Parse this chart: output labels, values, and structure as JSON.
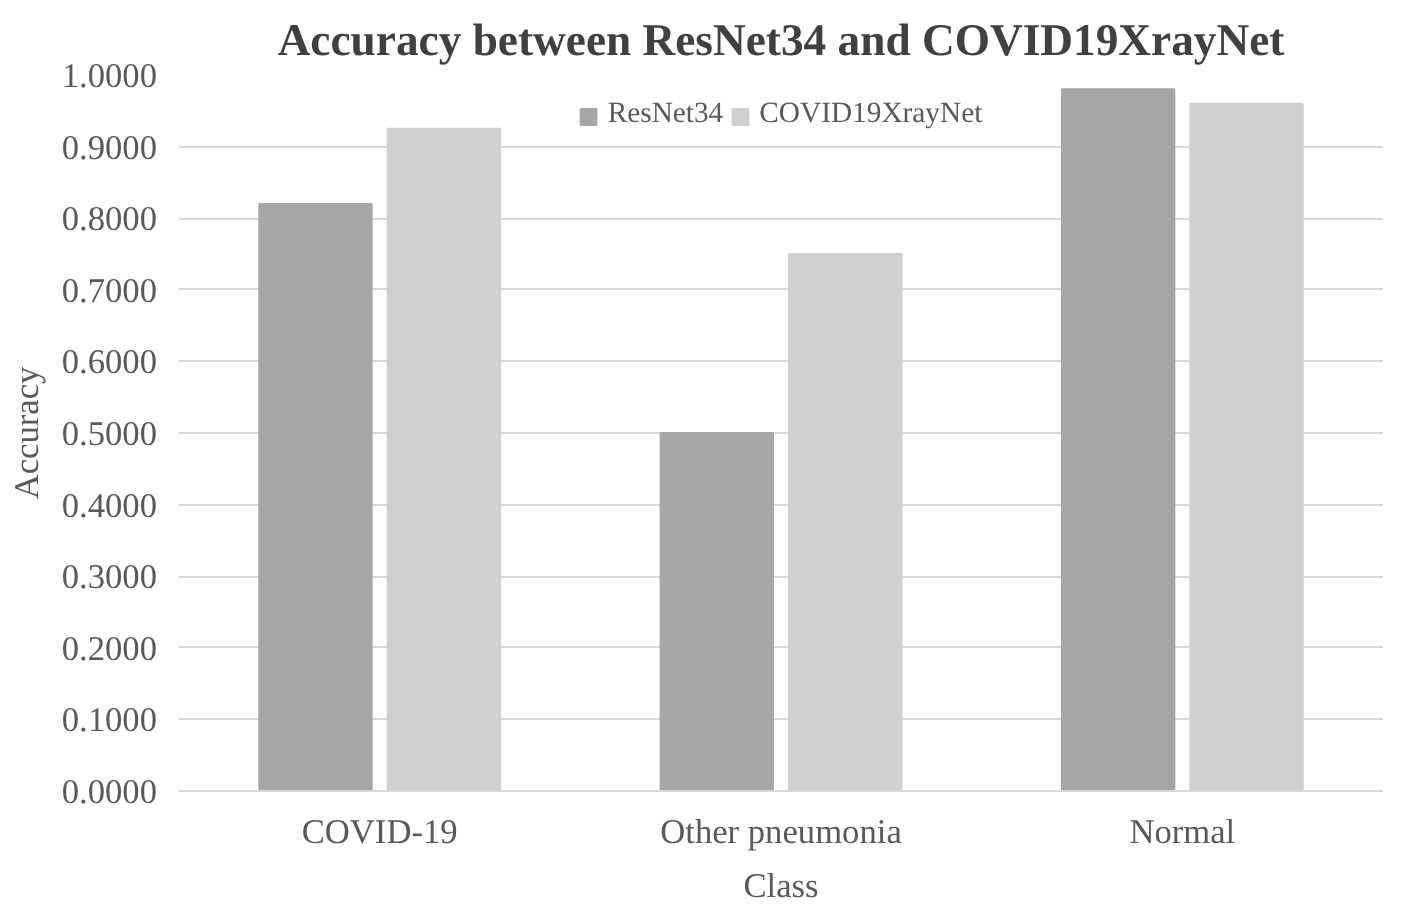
{
  "chart_data": {
    "type": "bar",
    "title": "Accuracy between ResNet34 and COVID19XrayNet",
    "xlabel": "Class",
    "ylabel": "Accuracy",
    "categories": [
      "COVID-19",
      "Other pneumonia",
      "Normal"
    ],
    "series": [
      {
        "name": "ResNet34",
        "color": "#a6a6a6",
        "values": [
          0.82,
          0.5,
          0.98
        ]
      },
      {
        "name": "COVID19XrayNet",
        "color": "#d0d0d0",
        "values": [
          0.925,
          0.75,
          0.96
        ]
      }
    ],
    "ylim": [
      0,
      1
    ],
    "yticks": [
      {
        "value": 0,
        "label": "0.0000"
      },
      {
        "value": 0.1,
        "label": "0.1000"
      },
      {
        "value": 0.2,
        "label": "0.2000"
      },
      {
        "value": 0.3,
        "label": "0.3000"
      },
      {
        "value": 0.4,
        "label": "0.4000"
      },
      {
        "value": 0.5,
        "label": "0.5000"
      },
      {
        "value": 0.6,
        "label": "0.6000"
      },
      {
        "value": 0.7,
        "label": "0.7000"
      },
      {
        "value": 0.8,
        "label": "0.8000"
      },
      {
        "value": 0.9,
        "label": "0.9000"
      },
      {
        "value": 1,
        "label": "1.0000"
      }
    ],
    "grid": "y",
    "legend": "top"
  }
}
